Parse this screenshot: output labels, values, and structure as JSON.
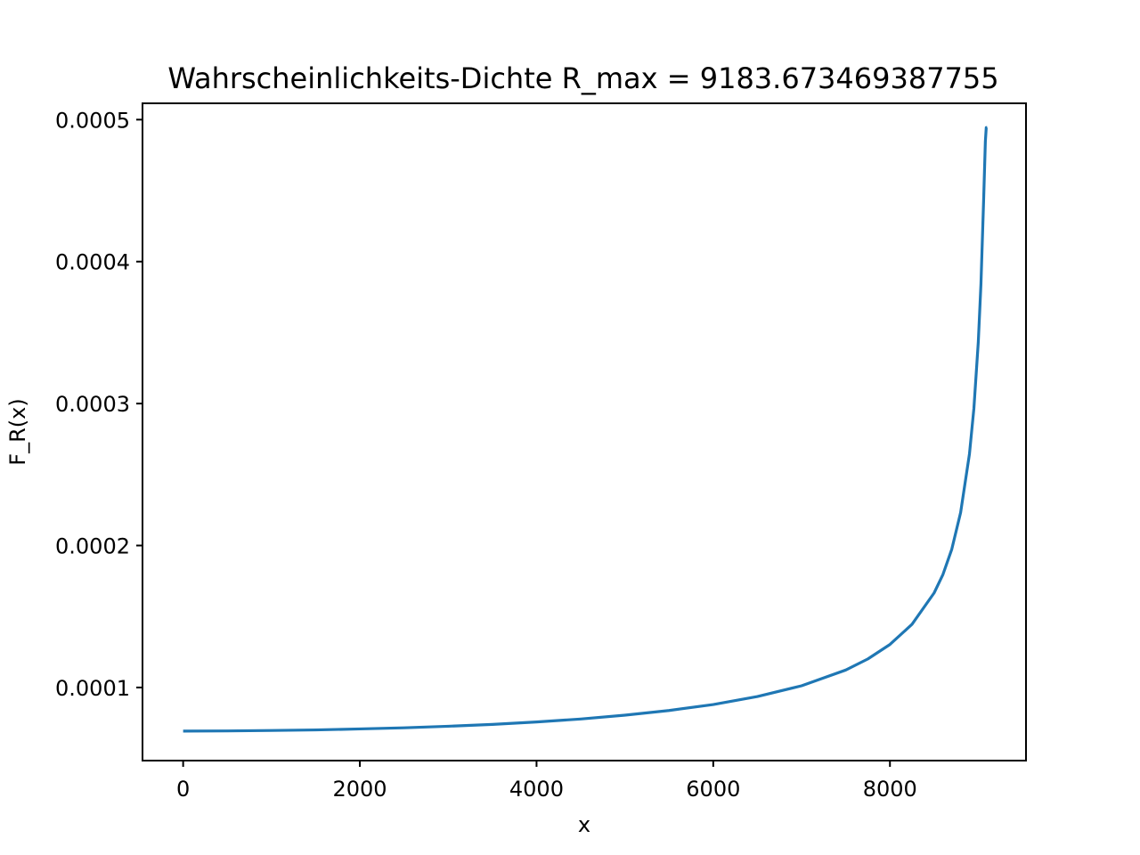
{
  "chart_data": {
    "type": "line",
    "title": "Wahrscheinlichkeits-Dichte R_max = 9183.673469387755",
    "xlabel": "x",
    "ylabel": "F_R(x)",
    "xlim": [
      -460,
      9540
    ],
    "ylim": [
      4.85e-05,
      0.0005115
    ],
    "xticks": [
      0,
      2000,
      4000,
      6000,
      8000
    ],
    "xtick_labels": [
      "0",
      "2000",
      "4000",
      "6000",
      "8000"
    ],
    "yticks": [
      0.0001,
      0.0002,
      0.0003,
      0.0004,
      0.0005
    ],
    "ytick_labels": [
      "0.0001",
      "0.0002",
      "0.0003",
      "0.0004",
      "0.0005"
    ],
    "grid": false,
    "series": [
      {
        "color": "#1f77b4",
        "x": [
          0,
          500,
          1000,
          1500,
          2000,
          2500,
          3000,
          3500,
          4000,
          4500,
          5000,
          5500,
          6000,
          6500,
          7000,
          7500,
          7750,
          8000,
          8250,
          8500,
          8600,
          8700,
          8800,
          8900,
          8950,
          9000,
          9030,
          9060,
          9080,
          9090,
          9100
        ],
        "y": [
          6.93e-05,
          6.94e-05,
          6.97e-05,
          7.01e-05,
          7.08e-05,
          7.16e-05,
          7.27e-05,
          7.4e-05,
          7.57e-05,
          7.78e-05,
          8.05e-05,
          8.38e-05,
          8.8e-05,
          9.36e-05,
          0.0001012,
          0.0001123,
          0.0001201,
          0.0001303,
          0.0001445,
          0.0001666,
          0.0001796,
          0.0001974,
          0.0002232,
          0.0002645,
          0.0002964,
          0.0003434,
          0.0003841,
          0.0004424,
          0.0004846,
          0.0004944,
          0.0004944
        ]
      }
    ]
  }
}
